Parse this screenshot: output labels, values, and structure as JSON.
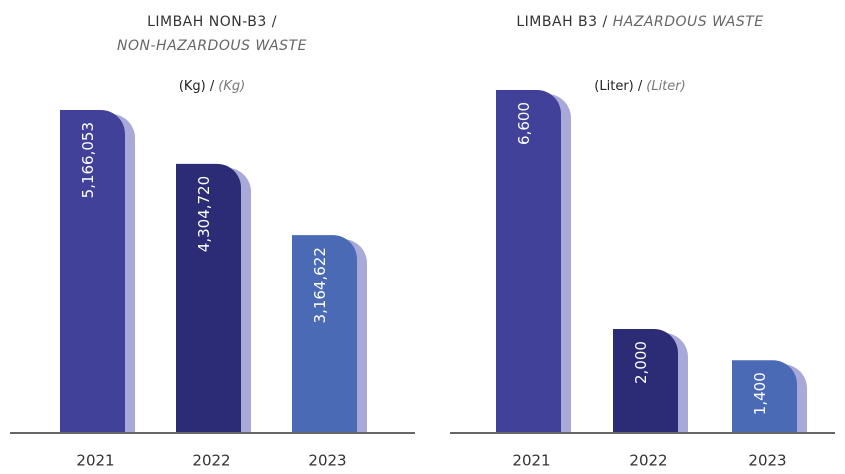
{
  "chart_data": [
    {
      "type": "bar",
      "title": "LIMBAH NON-B3 /",
      "subtitle": "NON-HAZARDOUS WASTE",
      "unit": "(Kg) /",
      "unit_translation": "(Kg)",
      "categories": [
        "2021",
        "2022",
        "2023"
      ],
      "values": [
        5166053,
        4304720,
        3164622
      ],
      "value_labels": [
        "5,166,053",
        "4,304,720",
        "3,164,622"
      ],
      "colors": [
        "#41419a",
        "#2b2b76",
        "#4b6ab6"
      ],
      "shadow_color": "#a9a9d9"
    },
    {
      "type": "bar",
      "title": "LIMBAH B3 /",
      "subtitle": "HAZARDOUS WASTE",
      "unit": "(Liter) /",
      "unit_translation": "(Liter)",
      "categories": [
        "2021",
        "2022",
        "2023"
      ],
      "values": [
        6600,
        2000,
        1400
      ],
      "value_labels": [
        "6,600",
        "2,000",
        "1,400"
      ],
      "colors": [
        "#41419a",
        "#2b2b76",
        "#4b6ab6"
      ],
      "shadow_color": "#a9a9d9"
    }
  ]
}
